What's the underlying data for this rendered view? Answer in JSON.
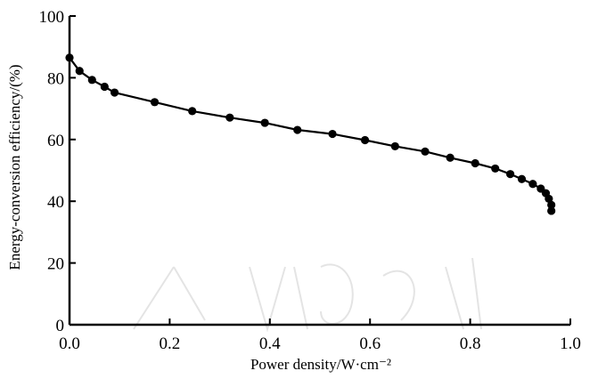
{
  "chart_data": {
    "type": "line",
    "title": "",
    "xlabel": "Power density/W·cm⁻²",
    "ylabel": "Energy-conversion efficiency/(%)",
    "xlim": [
      0.0,
      1.0
    ],
    "ylim": [
      0,
      100
    ],
    "x_ticks": [
      0.0,
      0.2,
      0.4,
      0.6,
      0.8,
      1.0
    ],
    "y_ticks": [
      0,
      20,
      40,
      60,
      80,
      100
    ],
    "x_tick_labels": [
      "0.0",
      "0.2",
      "0.4",
      "0.6",
      "0.8",
      "1.0"
    ],
    "y_tick_labels": [
      "0",
      "20",
      "40",
      "60",
      "80",
      "100"
    ],
    "grid": false,
    "legend": "none",
    "series": [
      {
        "marker": "filled-circle",
        "color": "#000000",
        "points": [
          [
            0.0,
            86.5
          ],
          [
            0.02,
            82.2
          ],
          [
            0.045,
            79.3
          ],
          [
            0.07,
            77.1
          ],
          [
            0.09,
            75.2
          ],
          [
            0.17,
            72.1
          ],
          [
            0.245,
            69.2
          ],
          [
            0.32,
            67.1
          ],
          [
            0.39,
            65.4
          ],
          [
            0.455,
            63.1
          ],
          [
            0.525,
            61.8
          ],
          [
            0.59,
            59.8
          ],
          [
            0.65,
            57.8
          ],
          [
            0.71,
            56.1
          ],
          [
            0.76,
            54.1
          ],
          [
            0.81,
            52.3
          ],
          [
            0.85,
            50.6
          ],
          [
            0.88,
            48.8
          ],
          [
            0.903,
            47.2
          ],
          [
            0.925,
            45.6
          ],
          [
            0.941,
            44.1
          ],
          [
            0.951,
            42.6
          ],
          [
            0.957,
            40.8
          ],
          [
            0.962,
            38.8
          ],
          [
            0.962,
            36.9
          ]
        ]
      }
    ]
  }
}
